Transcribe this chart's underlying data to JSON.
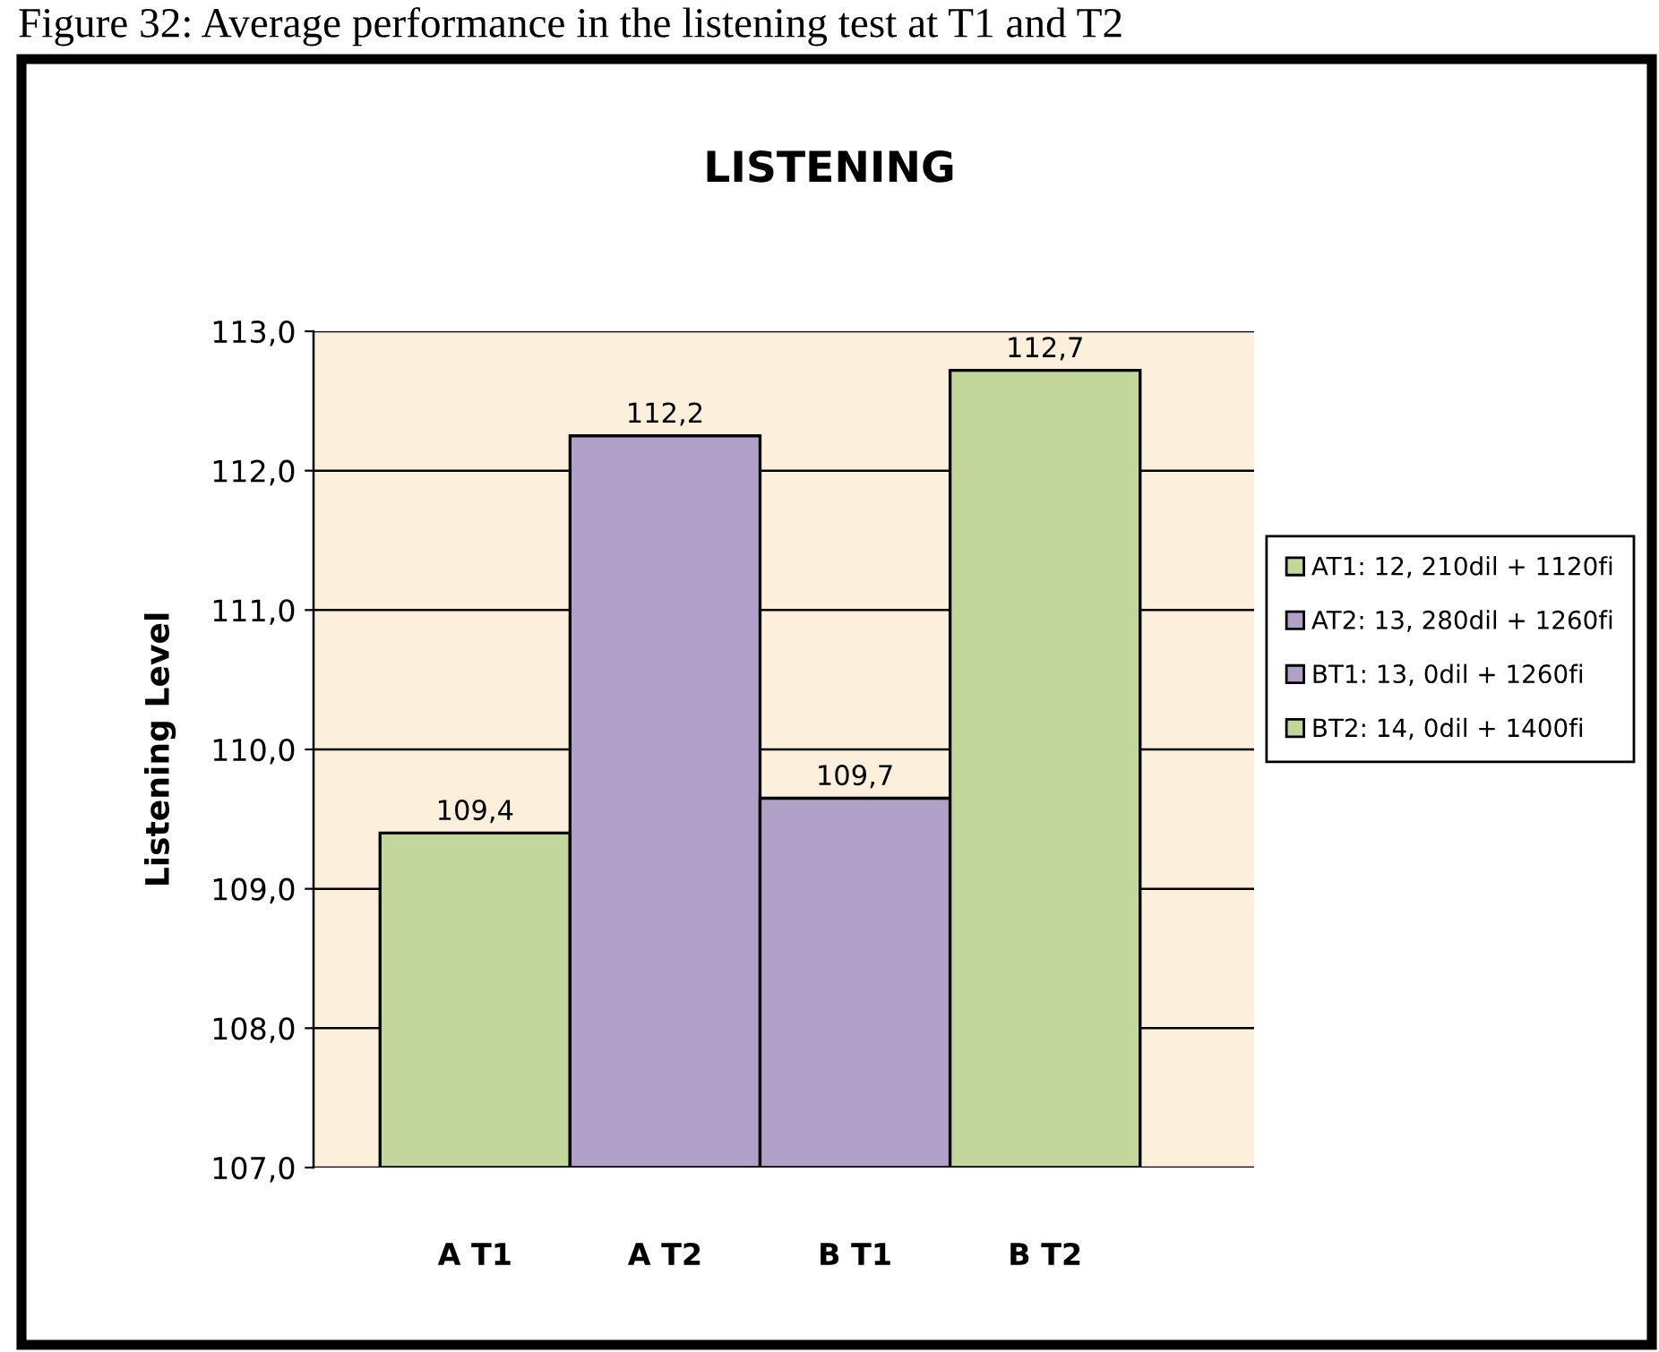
{
  "chart_data": {
    "type": "bar",
    "title": "LISTENING",
    "ylabel": "Listening Level",
    "annotations": [
      "Figure 32: Average performance in the listening test at T1 and T2"
    ],
    "categories": [
      "A T1",
      "A T2",
      "B T1",
      "B T2"
    ],
    "series": [
      {
        "name": "AT1: 12, 210dil + 1120fi",
        "color": "#c3d69b",
        "values": [
          109.4,
          null,
          null,
          null
        ],
        "value_labels": [
          "109,4",
          null,
          null,
          null
        ]
      },
      {
        "name": "AT2: 13, 280dil + 1260fi",
        "color": "#b1a0c7",
        "values": [
          null,
          112.25,
          null,
          null
        ],
        "value_labels": [
          null,
          "112,2",
          null,
          null
        ]
      },
      {
        "name": "BT1: 13, 0dil + 1260fi",
        "color": "#b1a0c7",
        "values": [
          null,
          null,
          109.65,
          null
        ],
        "value_labels": [
          null,
          null,
          "109,7",
          null
        ]
      },
      {
        "name": "BT2: 14, 0dil + 1400fi",
        "color": "#c3d69b",
        "values": [
          null,
          null,
          null,
          112.72
        ],
        "value_labels": [
          null,
          null,
          null,
          "112,7"
        ]
      }
    ],
    "ylim": [
      107,
      113
    ],
    "yticks": [
      {
        "value": 107,
        "label": "107,0"
      },
      {
        "value": 108,
        "label": "108,0"
      },
      {
        "value": 109,
        "label": "109,0"
      },
      {
        "value": 110,
        "label": "110,0"
      },
      {
        "value": 111,
        "label": "111,0"
      },
      {
        "value": 112,
        "label": "112,0"
      },
      {
        "value": 113,
        "label": "113,0"
      }
    ],
    "grid": "y",
    "legend": "right"
  }
}
